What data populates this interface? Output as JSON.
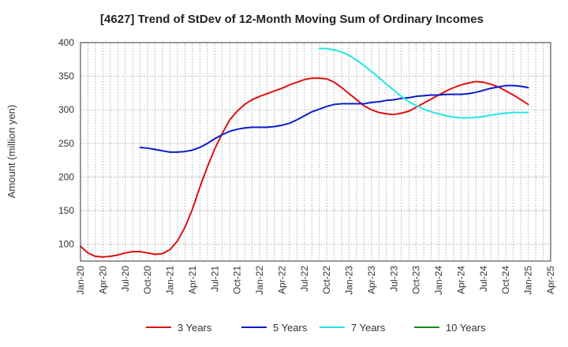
{
  "chart_data": {
    "type": "line",
    "title": "[4627]  Trend of StDev of 12-Month Moving Sum of Ordinary Incomes",
    "xlabel": "",
    "ylabel": "Amount (million yen)",
    "ylim": [
      75,
      400
    ],
    "yticks": [
      100,
      150,
      200,
      250,
      300,
      350,
      400
    ],
    "x_ticks": [
      "Jan-20",
      "Apr-20",
      "Jul-20",
      "Oct-20",
      "Jan-21",
      "Apr-21",
      "Jul-21",
      "Oct-21",
      "Jan-22",
      "Apr-22",
      "Jul-22",
      "Oct-22",
      "Jan-23",
      "Apr-23",
      "Jul-23",
      "Oct-23",
      "Jan-24",
      "Apr-24",
      "Jul-24",
      "Oct-24",
      "Jan-25",
      "Apr-25"
    ],
    "grid": true,
    "legend_position": "bottom",
    "series": [
      {
        "name": "3 Years",
        "color": "#dd1111",
        "points": [
          [
            "2020-01",
            97
          ],
          [
            "2020-02",
            87
          ],
          [
            "2020-03",
            82
          ],
          [
            "2020-04",
            81
          ],
          [
            "2020-05",
            82
          ],
          [
            "2020-06",
            84
          ],
          [
            "2020-07",
            87
          ],
          [
            "2020-08",
            89
          ],
          [
            "2020-09",
            89
          ],
          [
            "2020-10",
            87
          ],
          [
            "2020-11",
            85
          ],
          [
            "2020-12",
            86
          ],
          [
            "2021-01",
            92
          ],
          [
            "2021-02",
            105
          ],
          [
            "2021-03",
            125
          ],
          [
            "2021-04",
            152
          ],
          [
            "2021-05",
            185
          ],
          [
            "2021-06",
            215
          ],
          [
            "2021-07",
            242
          ],
          [
            "2021-08",
            265
          ],
          [
            "2021-09",
            285
          ],
          [
            "2021-10",
            298
          ],
          [
            "2021-11",
            308
          ],
          [
            "2021-12",
            315
          ],
          [
            "2022-01",
            320
          ],
          [
            "2022-02",
            324
          ],
          [
            "2022-03",
            328
          ],
          [
            "2022-04",
            332
          ],
          [
            "2022-05",
            337
          ],
          [
            "2022-06",
            341
          ],
          [
            "2022-07",
            345
          ],
          [
            "2022-08",
            347
          ],
          [
            "2022-09",
            347
          ],
          [
            "2022-10",
            346
          ],
          [
            "2022-11",
            341
          ],
          [
            "2022-12",
            333
          ],
          [
            "2023-01",
            324
          ],
          [
            "2023-02",
            315
          ],
          [
            "2023-03",
            306
          ],
          [
            "2023-04",
            300
          ],
          [
            "2023-05",
            296
          ],
          [
            "2023-06",
            294
          ],
          [
            "2023-07",
            293
          ],
          [
            "2023-08",
            295
          ],
          [
            "2023-09",
            298
          ],
          [
            "2023-10",
            304
          ],
          [
            "2023-11",
            310
          ],
          [
            "2023-12",
            316
          ],
          [
            "2024-01",
            322
          ],
          [
            "2024-02",
            328
          ],
          [
            "2024-03",
            333
          ],
          [
            "2024-04",
            337
          ],
          [
            "2024-05",
            340
          ],
          [
            "2024-06",
            342
          ],
          [
            "2024-07",
            341
          ],
          [
            "2024-08",
            338
          ],
          [
            "2024-09",
            334
          ],
          [
            "2024-10",
            328
          ],
          [
            "2024-11",
            322
          ],
          [
            "2024-12",
            315
          ],
          [
            "2025-01",
            308
          ]
        ]
      },
      {
        "name": "5 Years",
        "color": "#0a1ccc",
        "points": [
          [
            "2020-09",
            244
          ],
          [
            "2020-10",
            243
          ],
          [
            "2020-11",
            241
          ],
          [
            "2020-12",
            239
          ],
          [
            "2021-01",
            237
          ],
          [
            "2021-02",
            237
          ],
          [
            "2021-03",
            238
          ],
          [
            "2021-04",
            240
          ],
          [
            "2021-05",
            244
          ],
          [
            "2021-06",
            250
          ],
          [
            "2021-07",
            257
          ],
          [
            "2021-08",
            263
          ],
          [
            "2021-09",
            268
          ],
          [
            "2021-10",
            271
          ],
          [
            "2021-11",
            273
          ],
          [
            "2021-12",
            274
          ],
          [
            "2022-01",
            274
          ],
          [
            "2022-02",
            274
          ],
          [
            "2022-03",
            275
          ],
          [
            "2022-04",
            277
          ],
          [
            "2022-05",
            280
          ],
          [
            "2022-06",
            285
          ],
          [
            "2022-07",
            291
          ],
          [
            "2022-08",
            297
          ],
          [
            "2022-09",
            301
          ],
          [
            "2022-10",
            305
          ],
          [
            "2022-11",
            308
          ],
          [
            "2022-12",
            309
          ],
          [
            "2023-01",
            309
          ],
          [
            "2023-02",
            309
          ],
          [
            "2023-03",
            309
          ],
          [
            "2023-04",
            311
          ],
          [
            "2023-05",
            312
          ],
          [
            "2023-06",
            314
          ],
          [
            "2023-07",
            315
          ],
          [
            "2023-08",
            317
          ],
          [
            "2023-09",
            318
          ],
          [
            "2023-10",
            320
          ],
          [
            "2023-11",
            321
          ],
          [
            "2023-12",
            322
          ],
          [
            "2024-01",
            322
          ],
          [
            "2024-02",
            323
          ],
          [
            "2024-03",
            323
          ],
          [
            "2024-04",
            323
          ],
          [
            "2024-05",
            324
          ],
          [
            "2024-06",
            326
          ],
          [
            "2024-07",
            329
          ],
          [
            "2024-08",
            332
          ],
          [
            "2024-09",
            334
          ],
          [
            "2024-10",
            336
          ],
          [
            "2024-11",
            336
          ],
          [
            "2024-12",
            335
          ],
          [
            "2025-01",
            333
          ]
        ]
      },
      {
        "name": "7 Years",
        "color": "#22e6e6",
        "points": [
          [
            "2022-09",
            391
          ],
          [
            "2022-10",
            391
          ],
          [
            "2022-11",
            389
          ],
          [
            "2022-12",
            386
          ],
          [
            "2023-01",
            381
          ],
          [
            "2023-02",
            374
          ],
          [
            "2023-03",
            366
          ],
          [
            "2023-04",
            357
          ],
          [
            "2023-05",
            348
          ],
          [
            "2023-06",
            338
          ],
          [
            "2023-07",
            329
          ],
          [
            "2023-08",
            320
          ],
          [
            "2023-09",
            312
          ],
          [
            "2023-10",
            306
          ],
          [
            "2023-11",
            301
          ],
          [
            "2023-12",
            297
          ],
          [
            "2024-01",
            294
          ],
          [
            "2024-02",
            291
          ],
          [
            "2024-03",
            289
          ],
          [
            "2024-04",
            288
          ],
          [
            "2024-05",
            288
          ],
          [
            "2024-06",
            289
          ],
          [
            "2024-07",
            290
          ],
          [
            "2024-08",
            292
          ],
          [
            "2024-09",
            294
          ],
          [
            "2024-10",
            295
          ],
          [
            "2024-11",
            296
          ],
          [
            "2024-12",
            296
          ],
          [
            "2025-01",
            296
          ]
        ]
      },
      {
        "name": "10 Years",
        "color": "#1a8a1a",
        "points": []
      }
    ]
  }
}
